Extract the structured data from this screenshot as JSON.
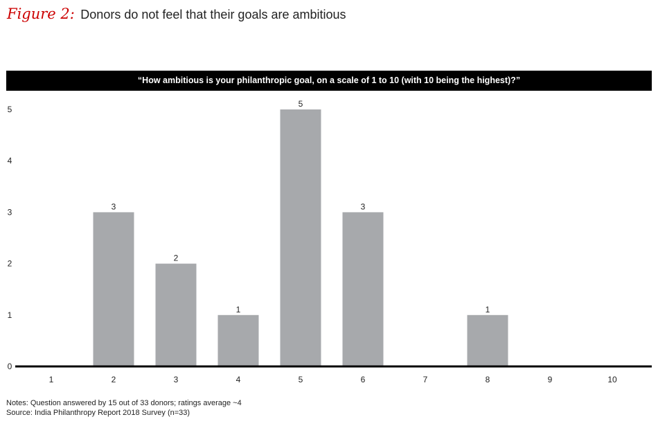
{
  "figure": {
    "label": "Figure 2:",
    "title": "Donors do not feel that their goals are ambitious"
  },
  "question": "“How ambitious is your philanthropic goal, on a scale of 1 to 10 (with 10 being the highest)?”",
  "notes": {
    "line1": "Notes: Question answered by 15 out of 33 donors; ratings average ~4",
    "line2": "Source: India Philanthropy Report 2018 Survey (n=33)"
  },
  "colors": {
    "accent": "#cc0000",
    "bar": "#a7a9ac",
    "header_bg": "#000000"
  },
  "chart_data": {
    "type": "bar",
    "title": "",
    "xlabel": "",
    "ylabel": "",
    "categories": [
      "1",
      "2",
      "3",
      "4",
      "5",
      "6",
      "7",
      "8",
      "9",
      "10"
    ],
    "values": [
      0,
      3,
      2,
      1,
      5,
      3,
      0,
      1,
      0,
      0
    ],
    "data_labels": [
      "",
      "3",
      "2",
      "1",
      "5",
      "3",
      "",
      "1",
      "",
      ""
    ],
    "yticks": [
      0,
      1,
      2,
      3,
      4,
      5
    ],
    "ylim": [
      0,
      5
    ],
    "grid": false,
    "legend": "none"
  }
}
